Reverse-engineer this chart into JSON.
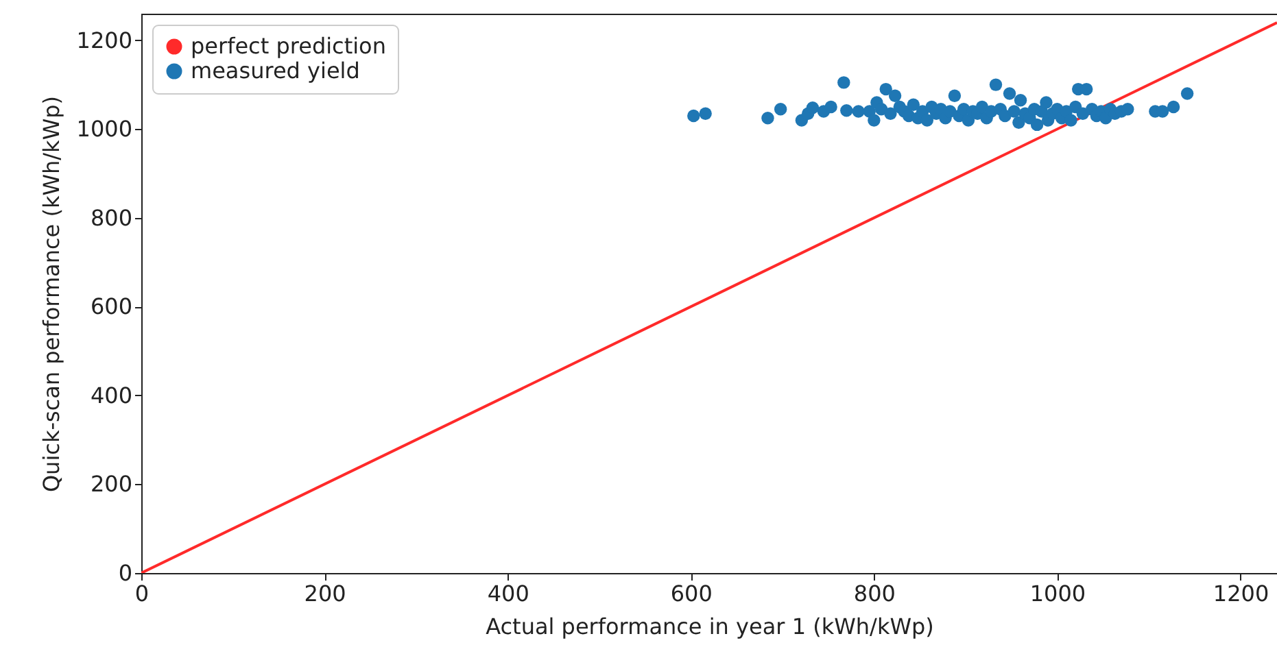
{
  "chart_data": {
    "type": "scatter",
    "xlabel": "Actual performance in year 1 (kWh/kWp)",
    "ylabel": "Quick-scan performance (kWh/kWp)",
    "xlim": [
      0,
      1240
    ],
    "ylim": [
      0,
      1260
    ],
    "xticks": [
      0,
      200,
      400,
      600,
      800,
      1000,
      1200
    ],
    "yticks": [
      0,
      200,
      400,
      600,
      800,
      1000,
      1200
    ],
    "grid": false,
    "legend": "top left",
    "series": [
      {
        "name": "perfect prediction",
        "type": "line",
        "color": "#ff2a2a",
        "line_style": "solid",
        "x": [
          0,
          1240
        ],
        "values": [
          0,
          1240
        ]
      },
      {
        "name": "measured yield",
        "marker": "circle",
        "color": "#1f77b4",
        "x": [
          603,
          616,
          684,
          698,
          721,
          728,
          733,
          745,
          753,
          767,
          770,
          783,
          795,
          800,
          803,
          808,
          813,
          818,
          823,
          828,
          833,
          838,
          843,
          848,
          853,
          858,
          863,
          868,
          873,
          878,
          883,
          888,
          893,
          898,
          903,
          908,
          913,
          918,
          923,
          928,
          933,
          938,
          943,
          948,
          953,
          958,
          960,
          965,
          970,
          975,
          978,
          983,
          988,
          990,
          995,
          1000,
          1005,
          1010,
          1015,
          1020,
          1023,
          1028,
          1032,
          1038,
          1043,
          1048,
          1053,
          1058,
          1063,
          1070,
          1077,
          1107,
          1115,
          1127,
          1142
        ],
        "values": [
          1030,
          1035,
          1025,
          1045,
          1020,
          1035,
          1048,
          1040,
          1050,
          1105,
          1042,
          1040,
          1040,
          1020,
          1060,
          1045,
          1090,
          1035,
          1075,
          1050,
          1040,
          1030,
          1055,
          1025,
          1040,
          1020,
          1050,
          1035,
          1045,
          1025,
          1040,
          1075,
          1030,
          1045,
          1020,
          1040,
          1035,
          1050,
          1025,
          1040,
          1100,
          1045,
          1030,
          1080,
          1040,
          1015,
          1065,
          1035,
          1025,
          1045,
          1010,
          1040,
          1060,
          1020,
          1035,
          1045,
          1025,
          1040,
          1020,
          1050,
          1090,
          1035,
          1090,
          1045,
          1030,
          1040,
          1025,
          1045,
          1035,
          1040,
          1045,
          1040,
          1040,
          1050,
          1080
        ]
      }
    ]
  }
}
